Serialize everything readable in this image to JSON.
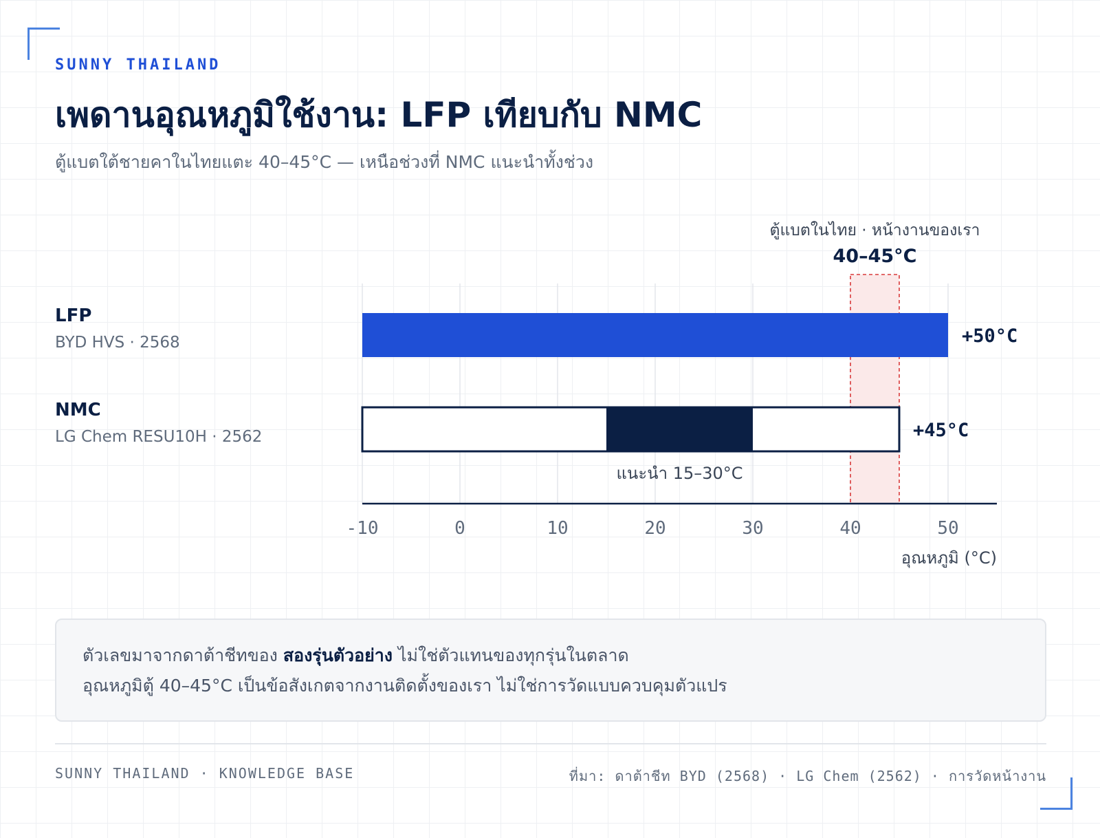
{
  "brand": "SUNNY THAILAND",
  "title": "เพดานอุณหภูมิใช้งาน: LFP เทียบกับ NMC",
  "subtitle": "ตู้แบตใต้ชายคาในไทยแตะ 40–45°C — เหนือช่วงที่ NMC แนะนำทั้งช่วง",
  "chart_data": {
    "type": "bar",
    "orientation": "horizontal",
    "x_axis_label": "อุณหภูมิ (°C)",
    "x_ticks": [
      -10,
      0,
      10,
      20,
      30,
      40,
      50
    ],
    "xlim": [
      -10,
      55
    ],
    "grid": "vertical gridlines",
    "series": [
      {
        "label": "LFP",
        "sublabel": "BYD HVS · 2568",
        "min": -10,
        "max": 50,
        "max_label": "+50°C",
        "color": "#1f4fd6",
        "style": "filled"
      },
      {
        "label": "NMC",
        "sublabel": "LG Chem RESU10H · 2562",
        "min": -10,
        "max": 45,
        "max_label": "+45°C",
        "style": "outlined",
        "recommended_min": 15,
        "recommended_max": 30,
        "recommended_label": "แนะนำ 15–30°C",
        "recommended_color": "#0b1f44"
      }
    ],
    "highlight_band": {
      "min": 40,
      "max": 45,
      "caption": "ตู้แบตในไทย · หน้างานของเรา",
      "value_label": "40–45°C",
      "color": "#d93a3a"
    }
  },
  "note": {
    "line1_before": "ตัวเลขมาจากดาต้าชีทของ ",
    "line1_bold": "สองรุ่นตัวอย่าง",
    "line1_after": " ไม่ใช่ตัวแทนของทุกรุ่นในตลาด",
    "line2": "อุณหภูมิตู้ 40–45°C เป็นข้อสังเกตจากงานติดตั้งของเรา ไม่ใช่การวัดแบบควบคุมตัวแปร"
  },
  "footer": {
    "left": "SUNNY THAILAND · KNOWLEDGE BASE",
    "right": "ที่มา: ดาต้าชีท BYD (2568) · LG Chem (2562) · การวัดหน้างาน"
  }
}
